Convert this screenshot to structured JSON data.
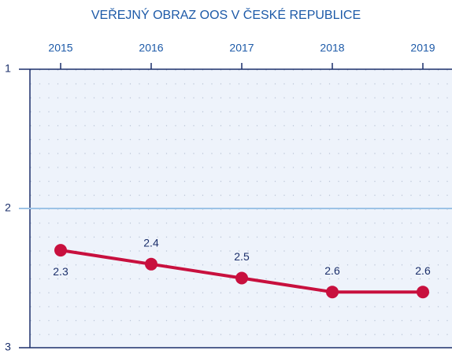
{
  "chart_data": {
    "type": "line",
    "title": "VEŘEJNÝ OBRAZ OOS V ČESKÉ REPUBLICE",
    "categories": [
      "2015",
      "2016",
      "2017",
      "2018",
      "2019"
    ],
    "series": [
      {
        "name": "Veřejný obraz",
        "color": "#c8103e",
        "values": [
          2.3,
          2.4,
          2.5,
          2.6,
          2.6
        ]
      }
    ],
    "ylim": [
      1,
      3
    ],
    "yticks": [
      1,
      2,
      3
    ],
    "y_inverted": true,
    "grid": true,
    "legend": false
  }
}
